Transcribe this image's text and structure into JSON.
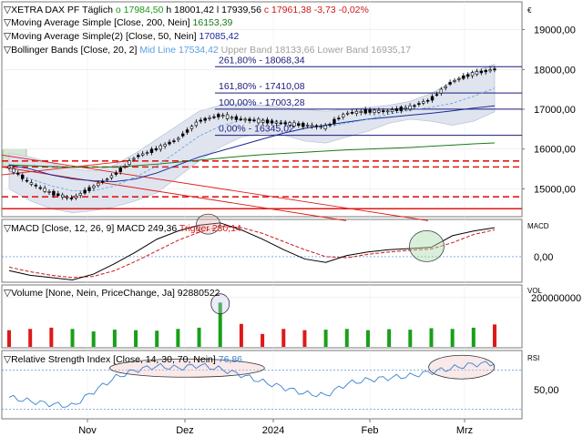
{
  "colors": {
    "price": "#000000",
    "ma200": "#1a7a1a",
    "ma50": "#1a2a9a",
    "bb_mid": "#5aa0e0",
    "bb_fill": "#dfe4ef",
    "fib": "#1a1a7a",
    "macd": "#000000",
    "trigger": "#d01818",
    "red": "#e01818",
    "vol_up": "#18a018",
    "vol_down": "#e01818",
    "rsi": "#3a80d0",
    "highlight": "#d7e6d5"
  },
  "header": {
    "symbol": "XETRA DAX PF",
    "period": "Täglich",
    "o_label": "o",
    "o_value": "17984,50",
    "h_label": "h",
    "h_value": "18001,42",
    "l_label": "l",
    "l_value": "17939,56",
    "c_label": "c",
    "c_value": "17961,38",
    "change": "-3,73",
    "change_pct": "-0,02%"
  },
  "legend": {
    "ma200_name": "Moving Average Simple",
    "ma200_params": "[Close, 200, Nein]",
    "ma200_value": "16153,39",
    "ma50_name": "Moving Average Simple(2)",
    "ma50_params": "[Close, 50, Nein]",
    "ma50_value": "17085,42",
    "bb_name": "Bollinger Bands",
    "bb_params": "[Close, 20, 2]",
    "bb_mid": "Mid Line 17534,42",
    "bb_upper": "Upper Band 18133,66",
    "bb_lower": "Lower Band 16935,17"
  },
  "currency_symbol": "€",
  "price_axis": {
    "ticks": [
      "19000,00",
      "18000,00",
      "17000,00",
      "16000,00",
      "15000,00"
    ]
  },
  "fibonacci": [
    {
      "label": "261,80% - 18068,34",
      "value": 18068.34
    },
    {
      "label": "161,80% - 17410,08",
      "value": 17410.08
    },
    {
      "label": "100,00% - 17003,28",
      "value": 17003.28
    },
    {
      "label": "0,00% - 16345,02",
      "value": 16345.02
    }
  ],
  "macd_panel": {
    "title": "MACD",
    "params": "[Close, 12, 26, 9]",
    "macd_value": "MACD 249,36",
    "trigger_value": "Trigger 230,14",
    "axis_label": "MACD",
    "ticks": [
      "0,00"
    ]
  },
  "volume_panel": {
    "title": "Volume",
    "params": "[None, Nein, PriceChange, Ja]",
    "value": "92880522",
    "axis_label": "VOL",
    "ticks": [
      "200000000"
    ]
  },
  "rsi_panel": {
    "title": "Relative Strength Index",
    "params": "[Close, 14, 30, 70, Nein]",
    "value": "76,86",
    "axis_label": "RSI",
    "ticks": [
      "50,00"
    ]
  },
  "time_axis": [
    "Nov",
    "Dez",
    "2024",
    "Feb",
    "Mrz"
  ],
  "chart_data": {
    "type": "line",
    "x_axis_labels": [
      "Nov",
      "Dez",
      "2024",
      "Feb",
      "Mrz"
    ],
    "price_ylim": [
      14300,
      19700
    ],
    "dates": [
      "2023-10-02",
      "2023-10-09",
      "2023-10-16",
      "2023-10-23",
      "2023-10-30",
      "2023-11-06",
      "2023-11-13",
      "2023-11-20",
      "2023-11-27",
      "2023-12-04",
      "2023-12-11",
      "2023-12-18",
      "2023-12-27",
      "2024-01-02",
      "2024-01-08",
      "2024-01-15",
      "2024-01-22",
      "2024-01-29",
      "2024-02-05",
      "2024-02-12",
      "2024-02-19",
      "2024-02-26",
      "2024-03-04",
      "2024-03-11"
    ],
    "series": [
      {
        "name": "XETRA DAX PF",
        "values": [
          15550,
          15150,
          14900,
          14750,
          15050,
          15350,
          15800,
          16000,
          16250,
          16700,
          16850,
          16750,
          16700,
          16650,
          16600,
          16550,
          16900,
          16950,
          16950,
          17050,
          17250,
          17700,
          17900,
          18000
        ]
      },
      {
        "name": "Moving Average Simple",
        "values": [
          15600,
          15580,
          15560,
          15540,
          15540,
          15550,
          15580,
          15620,
          15670,
          15720,
          15770,
          15820,
          15860,
          15890,
          15920,
          15950,
          15980,
          16000,
          16020,
          16040,
          16070,
          16100,
          16130,
          16153
        ]
      },
      {
        "name": "Moving Average Simple(2)",
        "values": [
          15600,
          15500,
          15350,
          15250,
          15200,
          15180,
          15250,
          15400,
          15600,
          15800,
          15950,
          16100,
          16250,
          16400,
          16520,
          16600,
          16680,
          16750,
          16800,
          16850,
          16900,
          16960,
          17030,
          17085
        ]
      },
      {
        "name": "Bollinger Upper",
        "values": [
          15900,
          15800,
          15650,
          15500,
          15450,
          15600,
          15900,
          16250,
          16600,
          16950,
          17100,
          17150,
          17100,
          17050,
          17000,
          16950,
          17000,
          17050,
          17100,
          17200,
          17400,
          17700,
          17950,
          18133
        ]
      },
      {
        "name": "Bollinger Lower",
        "values": [
          15000,
          14700,
          14500,
          14400,
          14450,
          14550,
          14700,
          14900,
          15300,
          15700,
          16050,
          16300,
          16400,
          16350,
          16200,
          16150,
          16300,
          16450,
          16650,
          16750,
          16700,
          16600,
          16700,
          16935
        ]
      },
      {
        "name": "Bollinger Mid",
        "values": [
          15450,
          15250,
          15075,
          14950,
          14950,
          15075,
          15300,
          15575,
          15950,
          16325,
          16575,
          16725,
          16750,
          16700,
          16600,
          16550,
          16650,
          16750,
          16875,
          16975,
          17050,
          17150,
          17325,
          17534
        ]
      }
    ],
    "macd": {
      "ylim": [
        -220,
        320
      ],
      "macd": [
        -120,
        -160,
        -180,
        -200,
        -150,
        -60,
        40,
        150,
        220,
        270,
        290,
        230,
        150,
        60,
        -20,
        -50,
        10,
        40,
        60,
        70,
        80,
        180,
        220,
        249
      ],
      "trigger": [
        -90,
        -130,
        -160,
        -180,
        -170,
        -120,
        -40,
        50,
        140,
        210,
        260,
        250,
        200,
        130,
        60,
        0,
        -10,
        20,
        40,
        55,
        65,
        120,
        190,
        230
      ]
    },
    "volume": {
      "ylim": [
        0,
        250000000
      ],
      "values": [
        70000000,
        75000000,
        80000000,
        75000000,
        65000000,
        72000000,
        70000000,
        68000000,
        75000000,
        80000000,
        180000000,
        95000000,
        55000000,
        75000000,
        70000000,
        72000000,
        75000000,
        70000000,
        74000000,
        72000000,
        78000000,
        75000000,
        80000000,
        92880522
      ],
      "direction": [
        "down",
        "down",
        "down",
        "up",
        "up",
        "up",
        "up",
        "up",
        "up",
        "up",
        "up",
        "down",
        "down",
        "down",
        "down",
        "up",
        "up",
        "up",
        "up",
        "up",
        "up",
        "up",
        "up",
        "down"
      ]
    },
    "rsi": {
      "ylim": [
        20,
        90
      ],
      "values": [
        42,
        38,
        35,
        33,
        48,
        62,
        70,
        74,
        72,
        75,
        71,
        65,
        58,
        52,
        46,
        44,
        56,
        60,
        62,
        64,
        68,
        72,
        76,
        76.86
      ],
      "levels": [
        30,
        70
      ]
    },
    "fib_levels": [
      18068.34,
      17410.08,
      17003.28,
      16345.02
    ],
    "support_lines": [
      15700,
      15550,
      14800,
      14500
    ]
  }
}
